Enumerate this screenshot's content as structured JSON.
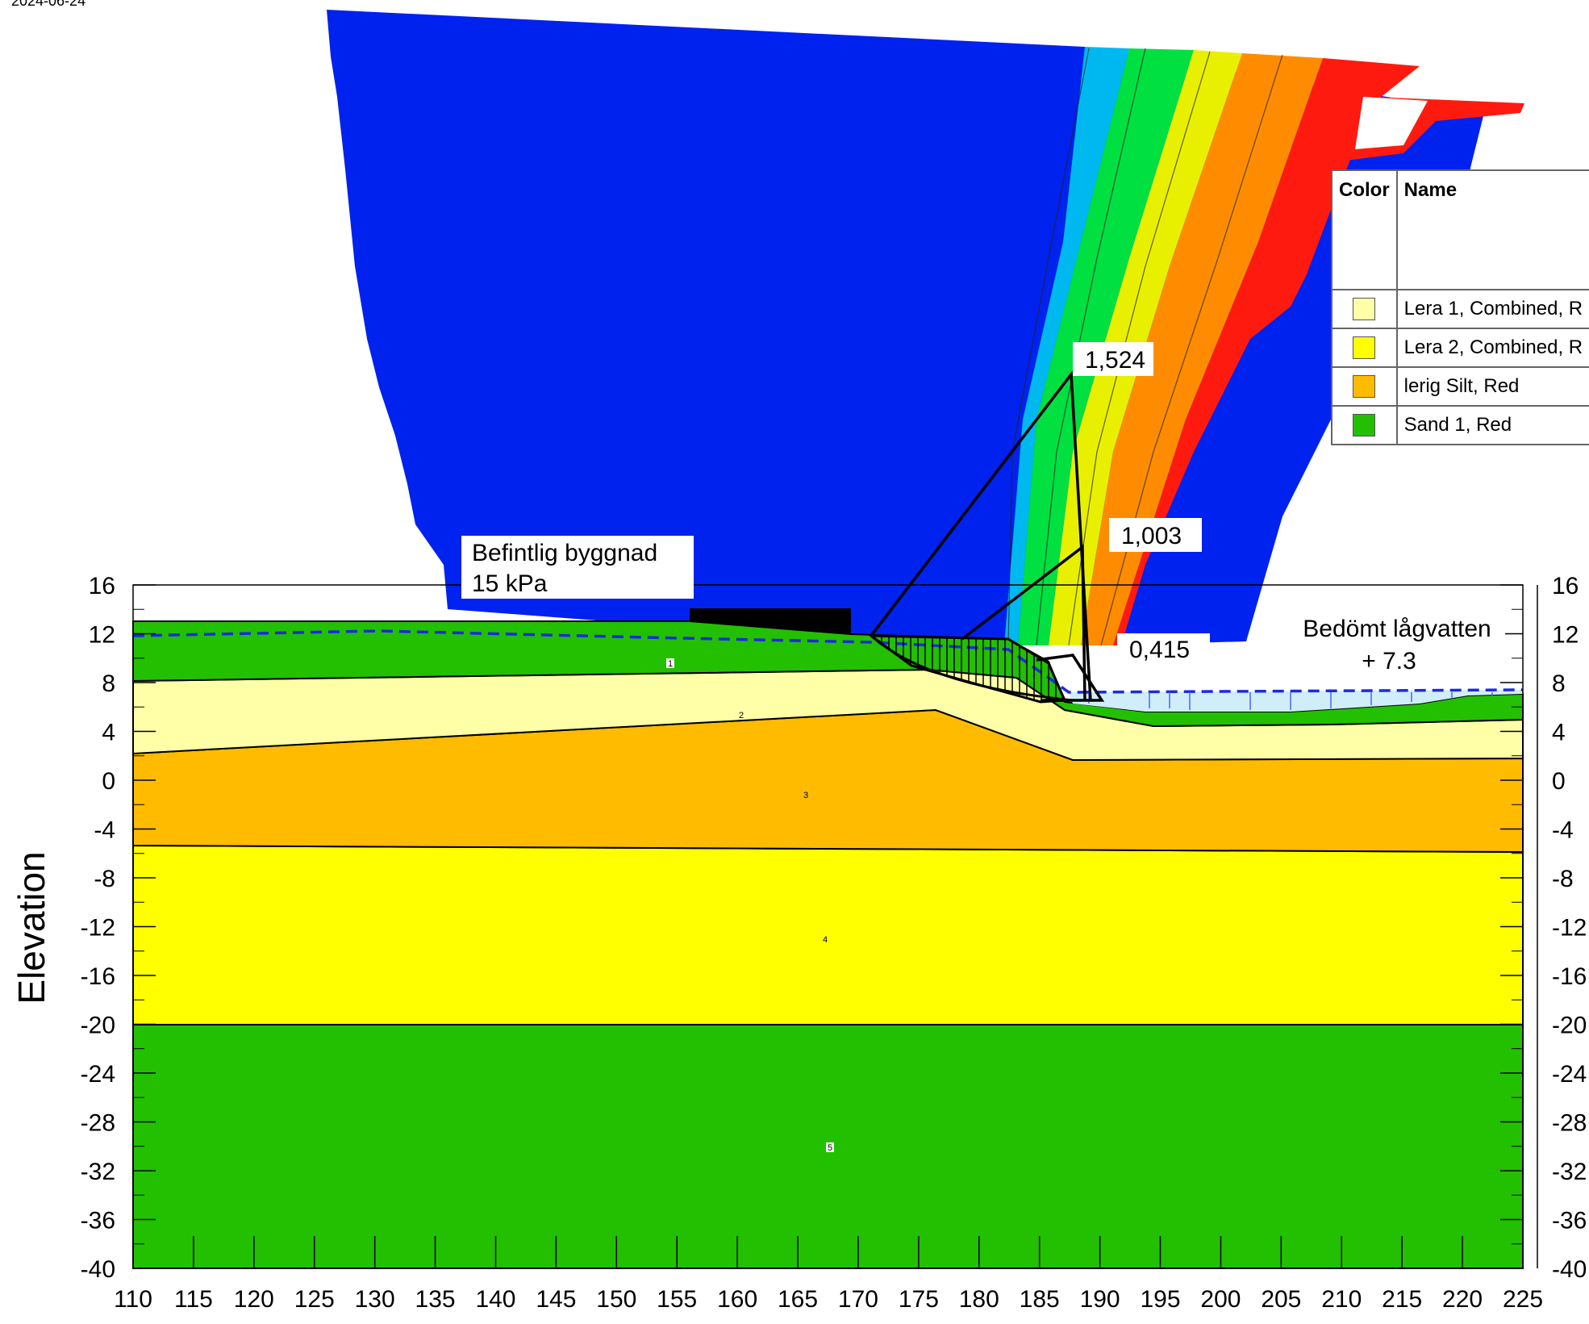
{
  "date_text": "2024-06-24",
  "axes": {
    "ylabel": "Elevation",
    "xlim": [
      110,
      225
    ],
    "ylim": [
      -40,
      16
    ],
    "x_ticks": [
      "110",
      "115",
      "120",
      "125",
      "130",
      "135",
      "140",
      "145",
      "150",
      "155",
      "160",
      "165",
      "170",
      "175",
      "180",
      "185",
      "190",
      "195",
      "200",
      "205",
      "210",
      "215",
      "220",
      "225"
    ],
    "y_ticks": [
      "16",
      "12",
      "8",
      "4",
      "0",
      "-4",
      "-8",
      "-12",
      "-16",
      "-20",
      "-24",
      "-28",
      "-32",
      "-36",
      "-40"
    ]
  },
  "legend": {
    "header_color": "Color",
    "header_name": "Name",
    "items": [
      {
        "name": "Lera 1, Combined, R",
        "color": "#ffffa8"
      },
      {
        "name": "Lera 2, Combined, R",
        "color": "#ffff00"
      },
      {
        "name": "lerig Silt, Red",
        "color": "#ffbb00"
      },
      {
        "name": "Sand 1, Red",
        "color": "#22c000"
      }
    ]
  },
  "annotations": {
    "load_line1": "Befintlig byggnad",
    "load_line2": "15 kPa",
    "water_line1": "Bedömt lågvatten",
    "water_line2": "+ 7.3",
    "fs_top": "1,524",
    "fs_mid": "1,003",
    "fs_low": "0,415"
  },
  "layer_numbers": [
    "1",
    "2",
    "3",
    "4",
    "5"
  ],
  "colors": {
    "contour_base": "#0022ee",
    "sand": "#22c000",
    "lera1": "#ffffa8",
    "lera2": "#ffff00",
    "silt": "#ffbb00",
    "water": "#cfeefa",
    "phreatic": "#1a2be0"
  }
}
